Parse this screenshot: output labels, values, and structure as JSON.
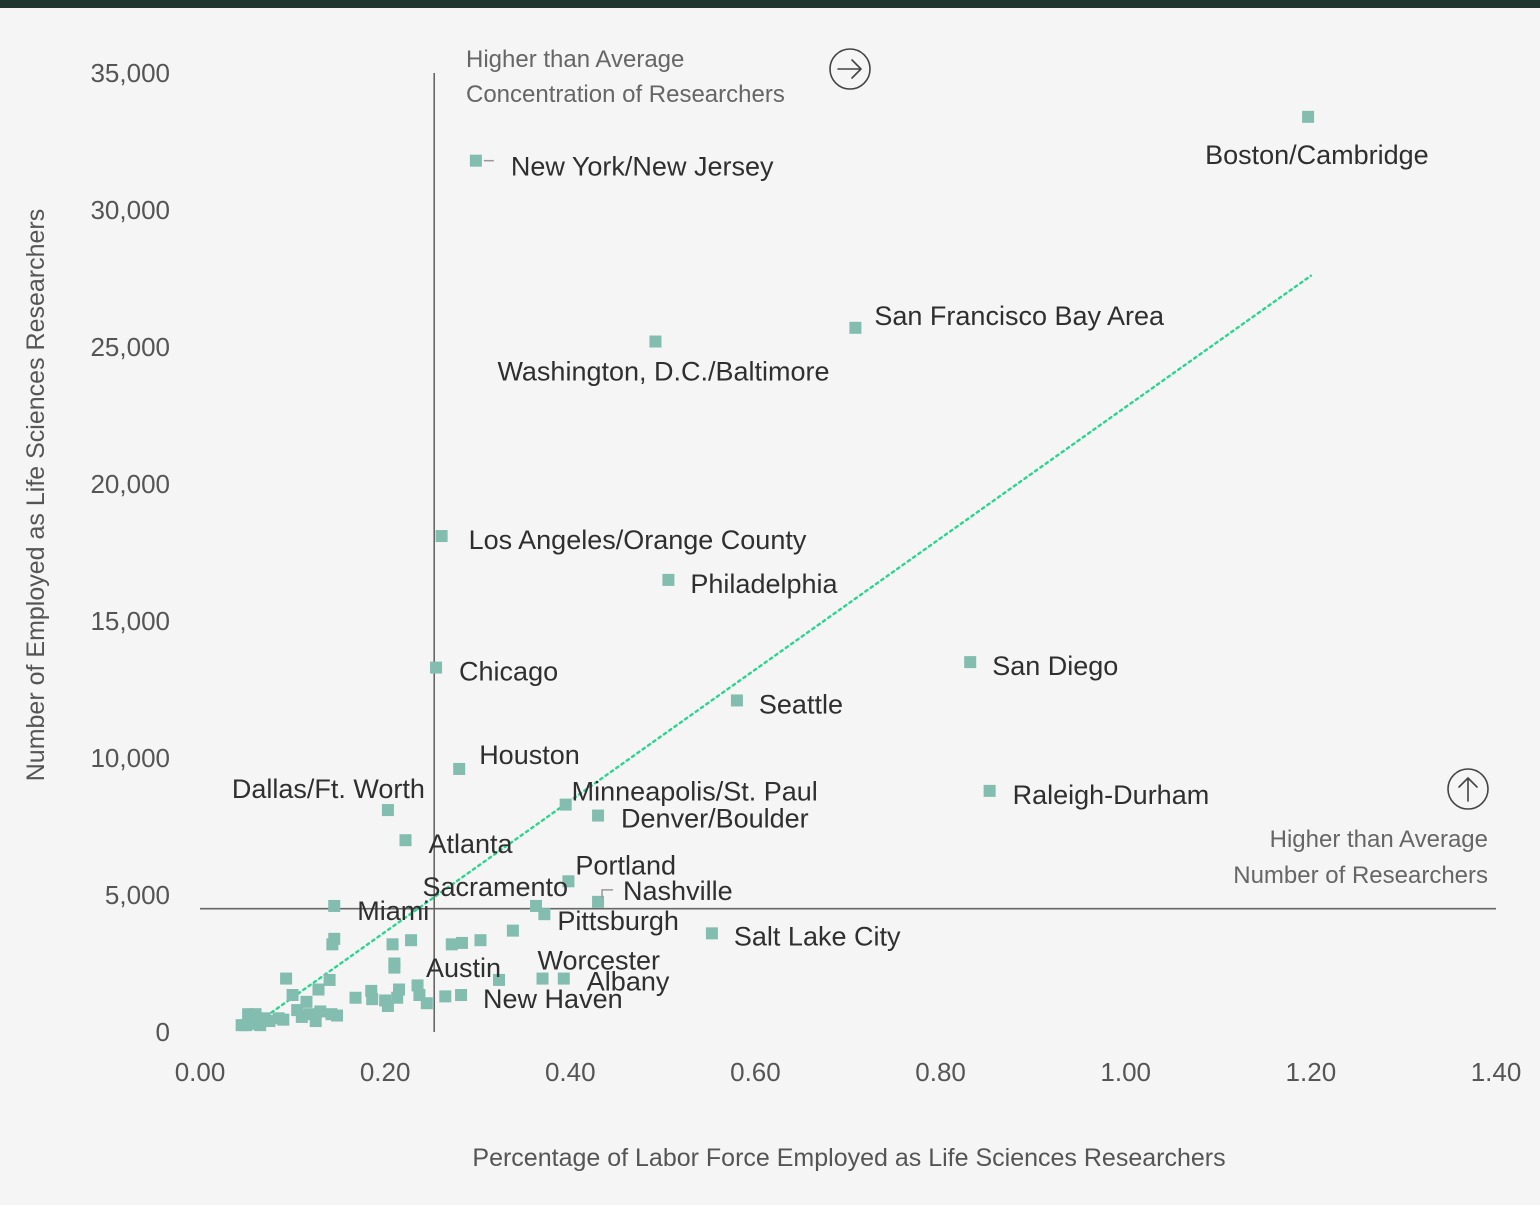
{
  "chart_data": {
    "type": "scatter",
    "title": "",
    "xlabel": "Percentage of Labor Force Employed as Life Sciences Researchers",
    "ylabel": "Number of Employed as Life Sciences Researchers",
    "xlim": [
      0,
      1.4
    ],
    "ylim": [
      0,
      35000
    ],
    "x_ticks": [
      "0.00",
      "0.20",
      "0.40",
      "0.60",
      "0.80",
      "1.00",
      "1.20",
      "1.40"
    ],
    "x_tick_values": [
      0,
      0.2,
      0.4,
      0.6,
      0.8,
      1.0,
      1.2,
      1.4
    ],
    "y_ticks": [
      "0",
      "5,000",
      "10,000",
      "15,000",
      "20,000",
      "25,000",
      "30,000",
      "35,000"
    ],
    "y_tick_values": [
      0,
      5000,
      10000,
      15000,
      20000,
      25000,
      30000,
      35000
    ],
    "reference_lines": {
      "x": 0.253,
      "y": 4500
    },
    "trendline": {
      "from": [
        0.06,
        300
      ],
      "to": [
        1.2,
        27600
      ]
    },
    "colors": {
      "point": "#82bdb0",
      "trend": "#2bd590",
      "reference": "#666666",
      "top_border": "#1f3530"
    },
    "annotations": [
      {
        "lines": [
          "Higher than Average",
          "Concentration of Researchers"
        ],
        "icon": "arrow-right-circle-icon"
      },
      {
        "lines": [
          "Higher than Average",
          "Number of Researchers"
        ],
        "icon": "arrow-up-circle-icon"
      }
    ],
    "labeled_points": [
      {
        "label": "Boston/Cambridge",
        "x": 1.197,
        "y": 33400
      },
      {
        "label": "New York/New Jersey",
        "x": 0.298,
        "y": 31800
      },
      {
        "label": "San Francisco Bay Area",
        "x": 0.708,
        "y": 25700
      },
      {
        "label": "Washington, D.C./Baltimore",
        "x": 0.492,
        "y": 25200
      },
      {
        "label": "Los Angeles/Orange County",
        "x": 0.261,
        "y": 18100
      },
      {
        "label": "Philadelphia",
        "x": 0.506,
        "y": 16500
      },
      {
        "label": "San Diego",
        "x": 0.832,
        "y": 13500
      },
      {
        "label": "Chicago",
        "x": 0.255,
        "y": 13300
      },
      {
        "label": "Seattle",
        "x": 0.58,
        "y": 12100
      },
      {
        "label": "Houston",
        "x": 0.28,
        "y": 9600
      },
      {
        "label": "Raleigh-Durham",
        "x": 0.853,
        "y": 8800
      },
      {
        "label": "Dallas/Ft. Worth",
        "x": 0.203,
        "y": 8100
      },
      {
        "label": "Minneapolis/St. Paul",
        "x": 0.395,
        "y": 8300
      },
      {
        "label": "Denver/Boulder",
        "x": 0.43,
        "y": 7900
      },
      {
        "label": "Atlanta",
        "x": 0.222,
        "y": 7000
      },
      {
        "label": "Portland",
        "x": 0.398,
        "y": 5500
      },
      {
        "label": "Nashville",
        "x": 0.43,
        "y": 4750
      },
      {
        "label": "Sacramento",
        "x": 0.363,
        "y": 4600
      },
      {
        "label": "Miami",
        "x": 0.145,
        "y": 4600
      },
      {
        "label": "Pittsburgh",
        "x": 0.372,
        "y": 4300
      },
      {
        "label": "Salt Lake City",
        "x": 0.553,
        "y": 3600
      },
      {
        "label": "Austin",
        "x": 0.323,
        "y": 1900
      },
      {
        "label": "Worcester",
        "x": 0.37,
        "y": 1950
      },
      {
        "label": "Albany",
        "x": 0.393,
        "y": 1950
      },
      {
        "label": "New Haven",
        "x": 0.282,
        "y": 1350
      }
    ],
    "unlabeled_points": [
      [
        0.145,
        3400
      ],
      [
        0.143,
        3200
      ],
      [
        0.208,
        3200
      ],
      [
        0.228,
        3350
      ],
      [
        0.21,
        2500
      ],
      [
        0.21,
        2350
      ],
      [
        0.272,
        3200
      ],
      [
        0.283,
        3250
      ],
      [
        0.303,
        3350
      ],
      [
        0.338,
        3700
      ],
      [
        0.093,
        1950
      ],
      [
        0.14,
        1900
      ],
      [
        0.128,
        1550
      ],
      [
        0.1,
        1350
      ],
      [
        0.115,
        1100
      ],
      [
        0.168,
        1250
      ],
      [
        0.185,
        1500
      ],
      [
        0.186,
        1200
      ],
      [
        0.2,
        1150
      ],
      [
        0.203,
        950
      ],
      [
        0.213,
        1250
      ],
      [
        0.215,
        1550
      ],
      [
        0.235,
        1700
      ],
      [
        0.237,
        1350
      ],
      [
        0.245,
        1050
      ],
      [
        0.265,
        1300
      ],
      [
        0.105,
        800
      ],
      [
        0.118,
        650
      ],
      [
        0.13,
        750
      ],
      [
        0.142,
        650
      ],
      [
        0.148,
        600
      ],
      [
        0.085,
        500
      ],
      [
        0.07,
        500
      ],
      [
        0.06,
        650
      ],
      [
        0.052,
        650
      ],
      [
        0.045,
        250
      ],
      [
        0.05,
        250
      ],
      [
        0.055,
        300
      ],
      [
        0.06,
        350
      ],
      [
        0.065,
        250
      ],
      [
        0.11,
        550
      ],
      [
        0.125,
        400
      ],
      [
        0.075,
        400
      ],
      [
        0.09,
        450
      ]
    ]
  }
}
